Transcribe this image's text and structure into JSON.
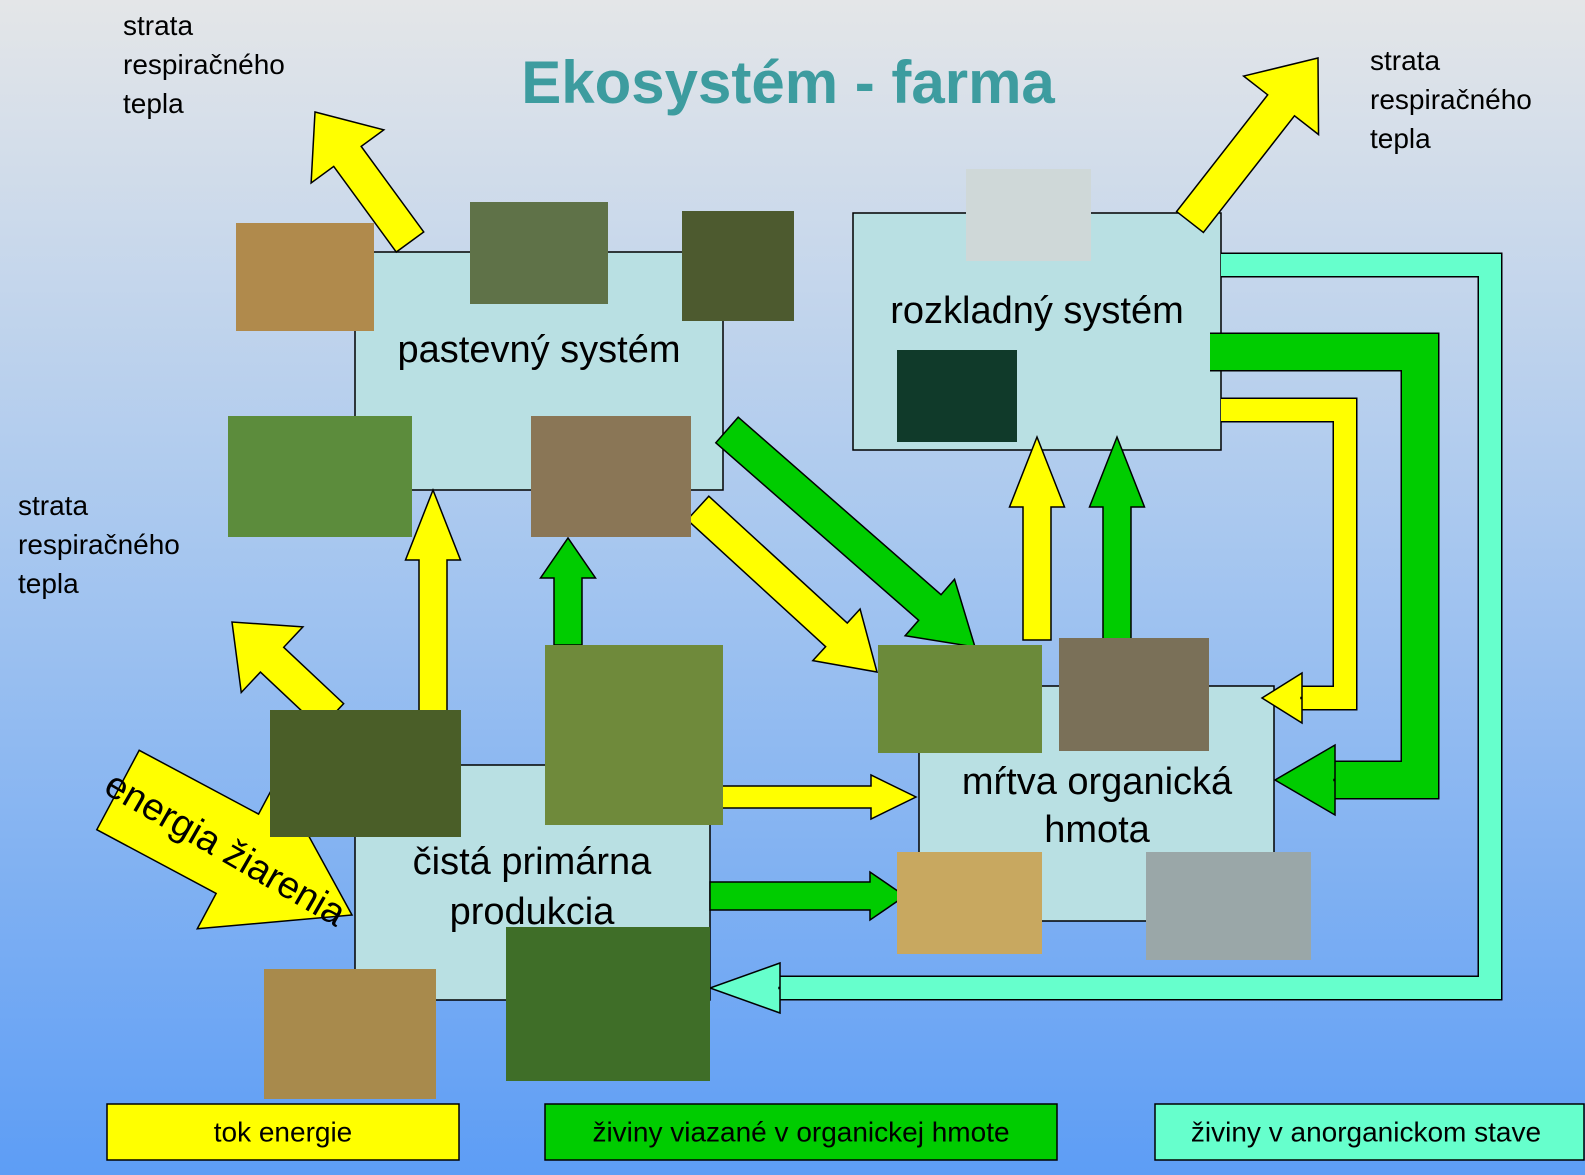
{
  "title": "Ekosystém - farma",
  "heat_losses": [
    {
      "lines": [
        "strata",
        "respiračného",
        "tepla"
      ]
    },
    {
      "lines": [
        "strata",
        "respiračného",
        "tepla"
      ]
    },
    {
      "lines": [
        "strata",
        "respiračného",
        "tepla"
      ]
    }
  ],
  "nodes": [
    {
      "lines": [
        "pastevný systém"
      ]
    },
    {
      "lines": [
        "rozkladný systém"
      ]
    },
    {
      "lines": [
        "mŕtva organická",
        "hmota"
      ]
    },
    {
      "lines": [
        "čistá primárna",
        "produkcia"
      ]
    }
  ],
  "energy_label": "energia žiarenia",
  "legend": [
    "tok energie",
    "živiny viazané v organickej hmote",
    "živiny v anorganickom stave"
  ]
}
